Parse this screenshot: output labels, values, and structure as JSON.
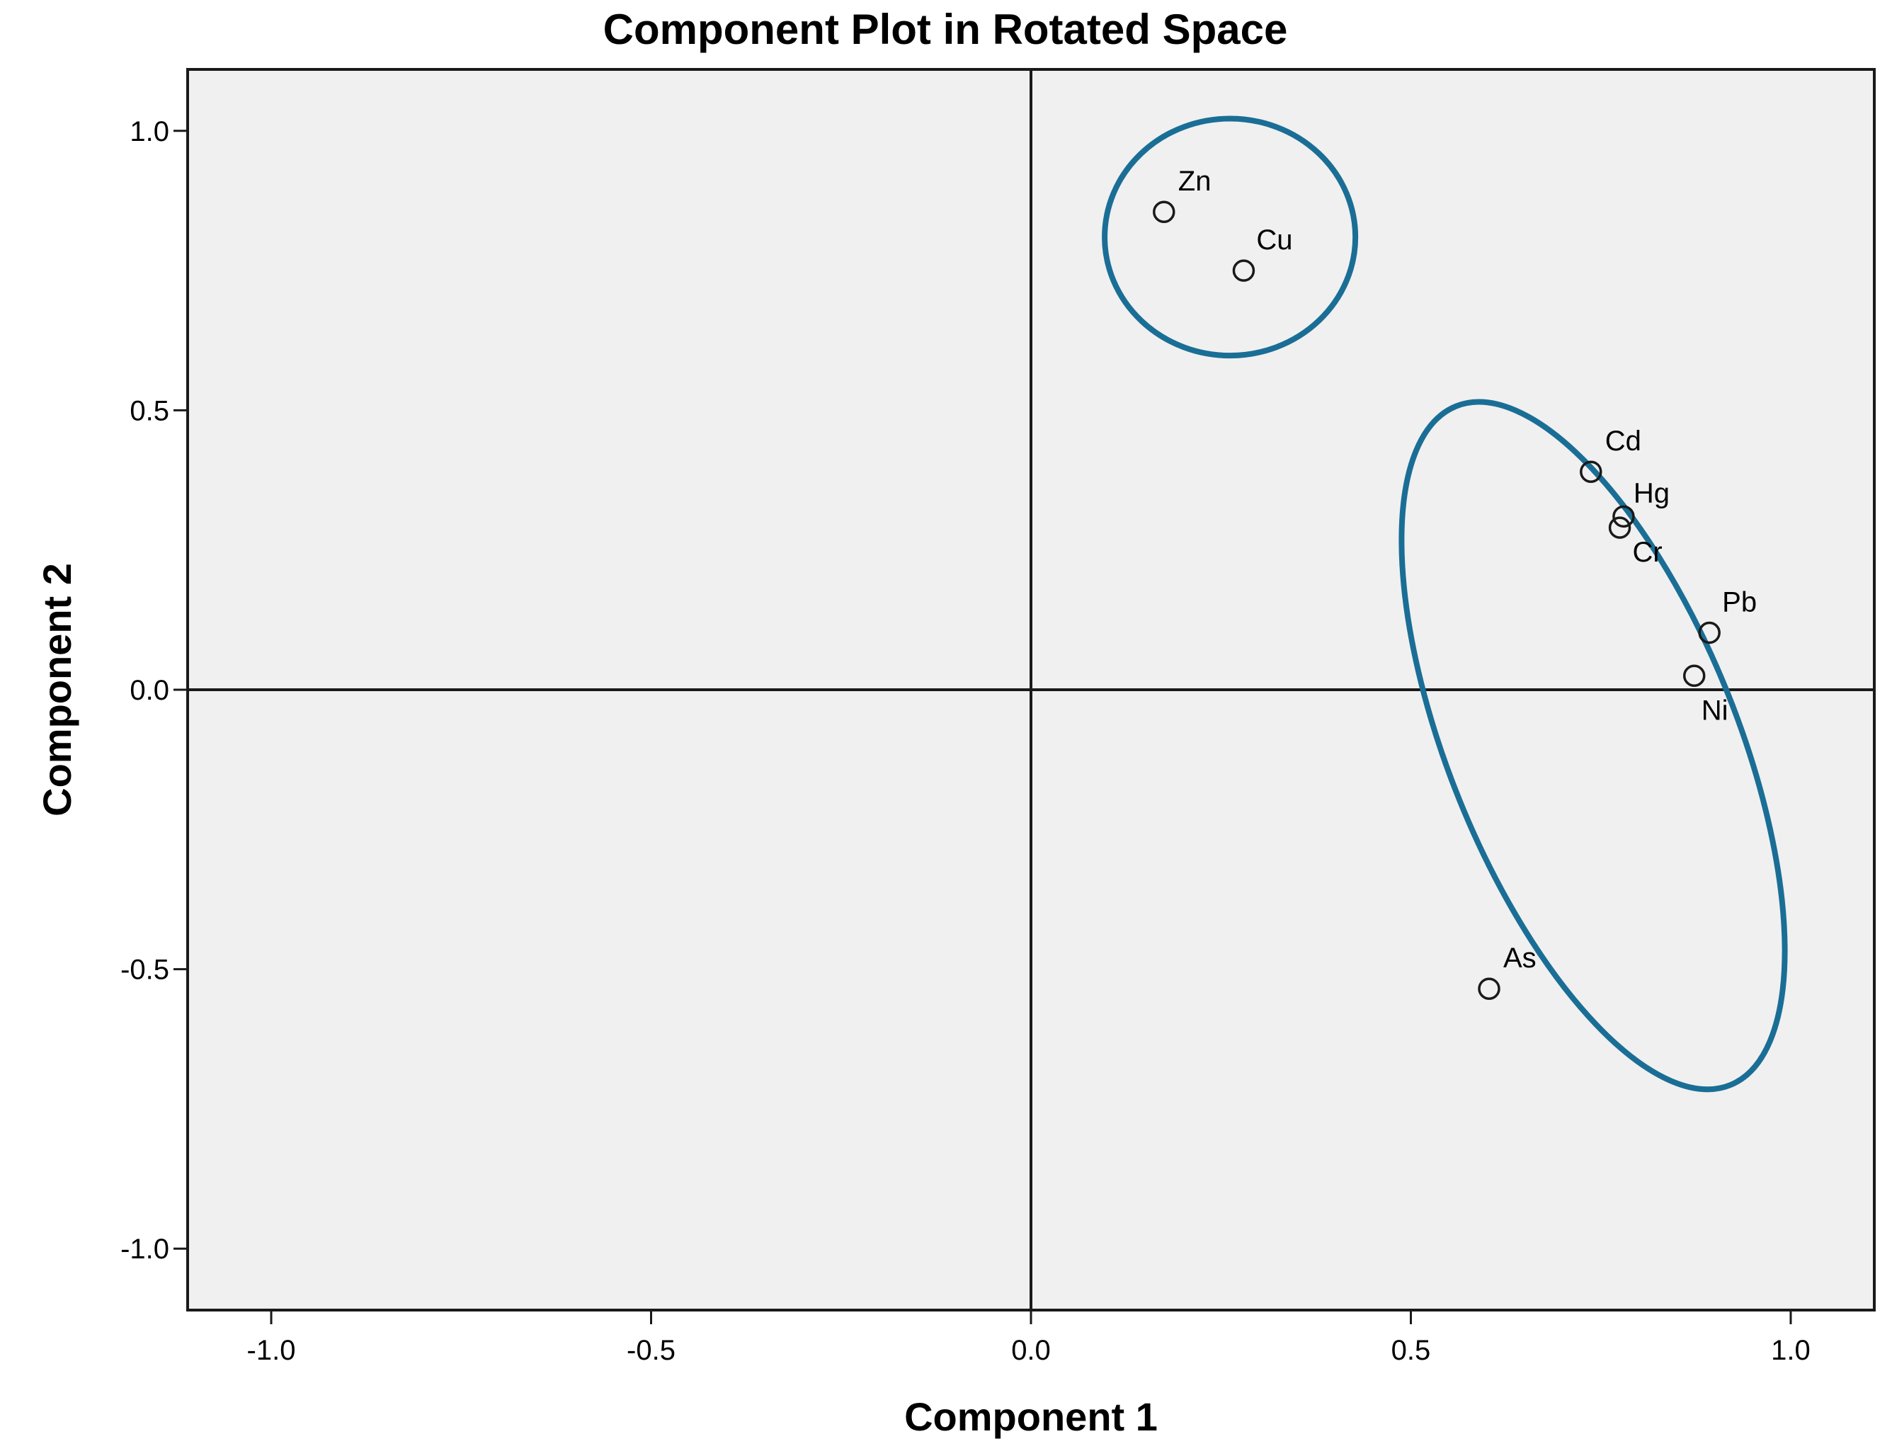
{
  "chart_data": {
    "type": "scatter",
    "title": "Component Plot in Rotated Space",
    "xlabel": "Component 1",
    "ylabel": "Component 2",
    "xlim": [
      -1.11,
      1.11
    ],
    "ylim": [
      -1.11,
      1.11
    ],
    "xticks": [
      -1.0,
      -0.5,
      0.0,
      0.5,
      1.0
    ],
    "xtick_labels": [
      "-1.0",
      "-0.5",
      "0.0",
      "0.5",
      "1.0"
    ],
    "yticks": [
      1.0,
      0.5,
      0.0,
      -0.5,
      -1.0
    ],
    "ytick_labels": [
      "1.0",
      "0.5",
      "0.0",
      "-0.5",
      "-1.0"
    ],
    "grid": false,
    "reference_lines": {
      "x": 0,
      "y": 0
    },
    "plot_background": "#f0f0f0",
    "marker_style": "open-circle",
    "points": [
      {
        "label": "Zn",
        "x": 0.175,
        "y": 0.855
      },
      {
        "label": "Cu",
        "x": 0.28,
        "y": 0.75
      },
      {
        "label": "Cd",
        "x": 0.737,
        "y": 0.39
      },
      {
        "label": "Hg",
        "x": 0.78,
        "y": 0.31
      },
      {
        "label": "Cr",
        "x": 0.775,
        "y": 0.29
      },
      {
        "label": "Pb",
        "x": 0.893,
        "y": 0.102
      },
      {
        "label": "Ni",
        "x": 0.873,
        "y": 0.025
      },
      {
        "label": "As",
        "x": 0.603,
        "y": -0.535
      }
    ],
    "group_outlines": [
      {
        "members": [
          "Zn",
          "Cu"
        ],
        "color": "#1a6e96",
        "cx": 0.262,
        "cy": 0.81,
        "rx": 0.165,
        "ry": 0.212,
        "angle_deg": 0
      },
      {
        "members": [
          "Cd",
          "Hg",
          "Cr",
          "Pb",
          "Ni",
          "As"
        ],
        "color": "#1a6e96",
        "cx": 0.74,
        "cy": -0.1,
        "rx": 0.19,
        "ry": 0.655,
        "angle_deg": -22
      }
    ]
  }
}
